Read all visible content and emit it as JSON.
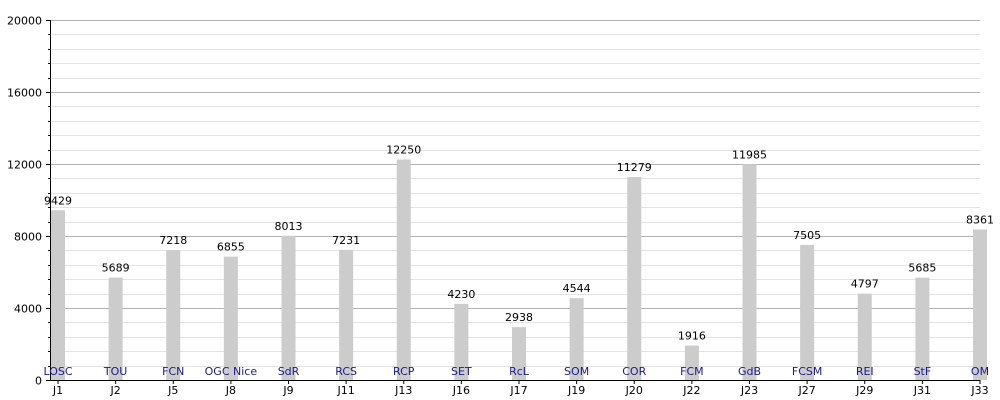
{
  "chart_data": {
    "type": "bar",
    "title": "",
    "xlabel": "",
    "ylabel": "",
    "ylim": [
      0,
      20000
    ],
    "yticks": [
      0,
      4000,
      8000,
      12000,
      16000,
      20000
    ],
    "minor_step": 800,
    "grid": true,
    "bar_color": "#cccccc",
    "team_label_color": "#1a1a8c",
    "categories": [
      "J1",
      "J2",
      "J5",
      "J8",
      "J9",
      "J11",
      "J13",
      "J16",
      "J17",
      "J19",
      "J20",
      "J22",
      "J23",
      "J27",
      "J29",
      "J31",
      "J33"
    ],
    "teams": [
      "LOSC",
      "TOU",
      "FCN",
      "OGC Nice",
      "SdR",
      "RCS",
      "RCP",
      "SET",
      "RcL",
      "SOM",
      "COR",
      "FCM",
      "GdB",
      "FCSM",
      "REI",
      "StF",
      "OM"
    ],
    "values": [
      9429,
      5689,
      7218,
      6855,
      8013,
      7231,
      12250,
      4230,
      2938,
      4544,
      11279,
      1916,
      11985,
      7505,
      4797,
      5685,
      8361
    ]
  }
}
